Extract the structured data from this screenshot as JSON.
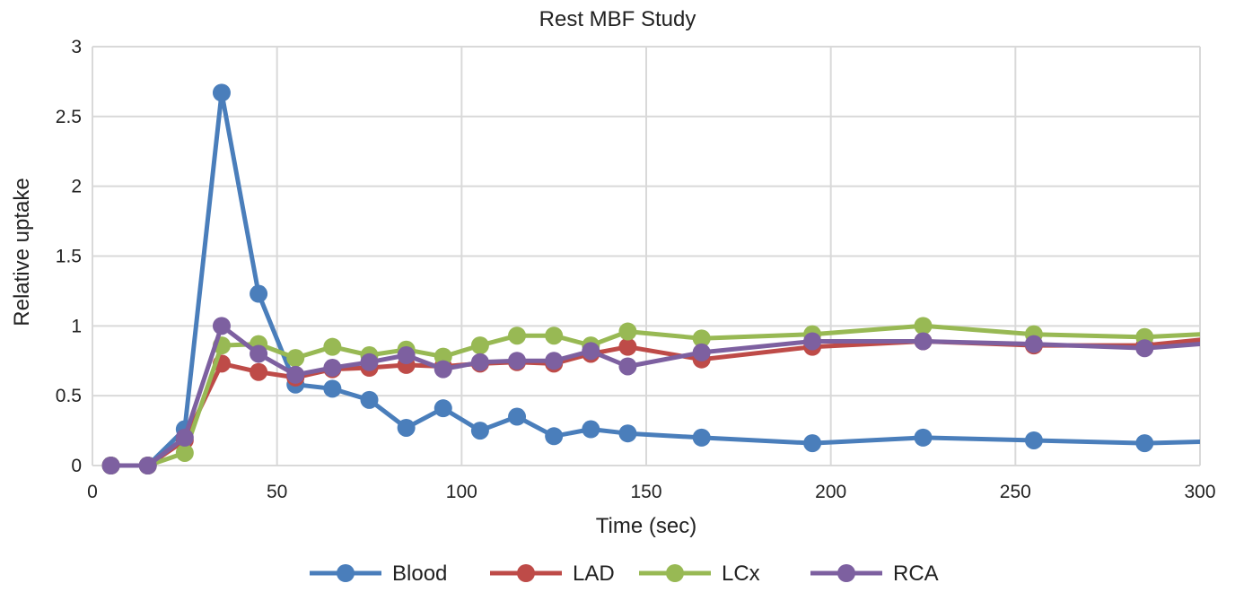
{
  "chart_data": {
    "type": "line",
    "title": "Rest MBF Study",
    "xlabel": "Time (sec)",
    "ylabel": "Relative uptake",
    "xlim": [
      0,
      300
    ],
    "ylim": [
      0,
      3
    ],
    "xticks": [
      0,
      50,
      100,
      150,
      200,
      250,
      300
    ],
    "yticks": [
      0,
      0.5,
      1,
      1.5,
      2,
      2.5,
      3
    ],
    "grid": true,
    "legend_position": "bottom",
    "x": [
      5,
      15,
      25,
      35,
      45,
      55,
      65,
      75,
      85,
      95,
      105,
      115,
      125,
      135,
      145,
      165,
      195,
      225,
      255,
      285,
      315
    ],
    "series": [
      {
        "name": "Blood",
        "color": "#4a7ebb",
        "values": [
          0,
          0,
          0.26,
          2.67,
          1.23,
          0.58,
          0.55,
          0.47,
          0.27,
          0.41,
          0.25,
          0.35,
          0.21,
          0.26,
          0.23,
          0.2,
          0.16,
          0.2,
          0.18,
          0.16,
          0.18
        ]
      },
      {
        "name": "LAD",
        "color": "#be4b48",
        "values": [
          0,
          0,
          0.18,
          0.73,
          0.67,
          0.63,
          0.69,
          0.7,
          0.72,
          0.71,
          0.73,
          0.74,
          0.73,
          0.8,
          0.85,
          0.76,
          0.85,
          0.89,
          0.86,
          0.86,
          0.94
        ]
      },
      {
        "name": "LCx",
        "color": "#98b954",
        "values": [
          0,
          0,
          0.09,
          0.86,
          0.87,
          0.77,
          0.85,
          0.79,
          0.83,
          0.78,
          0.86,
          0.93,
          0.93,
          0.86,
          0.96,
          0.91,
          0.94,
          1.0,
          0.94,
          0.92,
          0.96
        ]
      },
      {
        "name": "RCA",
        "color": "#7d60a0",
        "values": [
          0,
          0,
          0.2,
          1.0,
          0.8,
          0.65,
          0.7,
          0.74,
          0.79,
          0.69,
          0.74,
          0.75,
          0.75,
          0.82,
          0.71,
          0.81,
          0.89,
          0.89,
          0.87,
          0.84,
          0.9
        ]
      }
    ]
  }
}
